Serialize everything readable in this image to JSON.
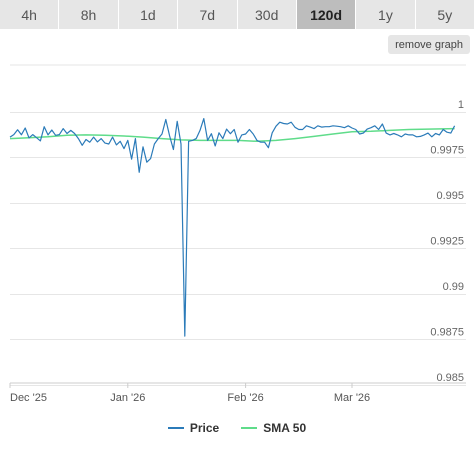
{
  "tabs": [
    {
      "label": "4h",
      "active": false
    },
    {
      "label": "8h",
      "active": false
    },
    {
      "label": "1d",
      "active": false
    },
    {
      "label": "7d",
      "active": false
    },
    {
      "label": "30d",
      "active": false
    },
    {
      "label": "120d",
      "active": true
    },
    {
      "label": "1y",
      "active": false
    },
    {
      "label": "5y",
      "active": false
    }
  ],
  "remove_graph_label": "remove graph",
  "colors": {
    "price": "#2b7bb9",
    "sma": "#5fdc8a",
    "grid": "#e6e6e6"
  },
  "chart_data": {
    "type": "line",
    "x_unit": "day index (0 = 1 Dec 2025)",
    "x_ticks": [
      {
        "label": "Dec '25",
        "x": 0
      },
      {
        "label": "Jan '26",
        "x": 31
      },
      {
        "label": "Feb '26",
        "x": 62
      },
      {
        "label": "Mar '26",
        "x": 90
      }
    ],
    "xlim": [
      0,
      120
    ],
    "ylim": [
      0.985,
      1.0
    ],
    "y_ticks": [
      {
        "label": "1",
        "v": 1.0
      },
      {
        "label": "0.9975",
        "v": 0.9975
      },
      {
        "label": "0.995",
        "v": 0.995
      },
      {
        "label": "0.9925",
        "v": 0.9925
      },
      {
        "label": "0.99",
        "v": 0.99
      },
      {
        "label": "0.9875",
        "v": 0.9875
      },
      {
        "label": "0.985",
        "v": 0.985
      }
    ],
    "grid": true,
    "legend_position": "bottom",
    "series": [
      {
        "name": "Price",
        "color": "#2b7bb9",
        "points": [
          [
            0,
            0.99818
          ],
          [
            1,
            0.99832
          ],
          [
            2,
            0.99858
          ],
          [
            3,
            0.99831
          ],
          [
            4,
            0.99868
          ],
          [
            5,
            0.99814
          ],
          [
            6,
            0.99832
          ],
          [
            7,
            0.99815
          ],
          [
            8,
            0.99797
          ],
          [
            9,
            0.99875
          ],
          [
            10,
            0.9983
          ],
          [
            11,
            0.99857
          ],
          [
            12,
            0.99828
          ],
          [
            13,
            0.99832
          ],
          [
            14,
            0.99865
          ],
          [
            15,
            0.99838
          ],
          [
            16,
            0.99855
          ],
          [
            17,
            0.99838
          ],
          [
            18,
            0.9981
          ],
          [
            19,
            0.99773
          ],
          [
            20,
            0.99805
          ],
          [
            21,
            0.9979
          ],
          [
            22,
            0.99818
          ],
          [
            23,
            0.99792
          ],
          [
            24,
            0.9981
          ],
          [
            25,
            0.99785
          ],
          [
            26,
            0.9978
          ],
          [
            27,
            0.99818
          ],
          [
            28,
            0.99775
          ],
          [
            29,
            0.99795
          ],
          [
            30,
            0.99755
          ],
          [
            31,
            0.998
          ],
          [
            32,
            0.99697
          ],
          [
            33,
            0.9981
          ],
          [
            34,
            0.99625
          ],
          [
            35,
            0.99765
          ],
          [
            36,
            0.9968
          ],
          [
            37,
            0.997
          ],
          [
            38,
            0.9978
          ],
          [
            39,
            0.9981
          ],
          [
            40,
            0.99835
          ],
          [
            41,
            0.99915
          ],
          [
            42,
            0.99825
          ],
          [
            43,
            0.9975
          ],
          [
            44,
            0.99905
          ],
          [
            45,
            0.9978
          ],
          [
            46,
            0.98725
          ],
          [
            47,
            0.99795
          ],
          [
            48,
            0.998
          ],
          [
            49,
            0.9981
          ],
          [
            50,
            0.99855
          ],
          [
            51,
            0.9992
          ],
          [
            52,
            0.998
          ],
          [
            53,
            0.99837
          ],
          [
            54,
            0.9977
          ],
          [
            55,
            0.99842
          ],
          [
            56,
            0.9981
          ],
          [
            57,
            0.99862
          ],
          [
            58,
            0.99837
          ],
          [
            59,
            0.9986
          ],
          [
            60,
            0.9979
          ],
          [
            61,
            0.9983
          ],
          [
            62,
            0.99835
          ],
          [
            63,
            0.9986
          ],
          [
            64,
            0.99835
          ],
          [
            65,
            0.998
          ],
          [
            66,
            0.9979
          ],
          [
            67,
            0.9979
          ],
          [
            68,
            0.9976
          ],
          [
            69,
            0.99842
          ],
          [
            70,
            0.99878
          ],
          [
            71,
            0.999
          ],
          [
            72,
            0.99893
          ],
          [
            73,
            0.9989
          ],
          [
            74,
            0.999
          ],
          [
            75,
            0.99872
          ],
          [
            76,
            0.9986
          ],
          [
            77,
            0.9986
          ],
          [
            78,
            0.9988
          ],
          [
            79,
            0.99873
          ],
          [
            80,
            0.99865
          ],
          [
            81,
            0.9988
          ],
          [
            82,
            0.99873
          ],
          [
            83,
            0.99875
          ],
          [
            84,
            0.99875
          ],
          [
            85,
            0.9988
          ],
          [
            86,
            0.99878
          ],
          [
            87,
            0.99875
          ],
          [
            88,
            0.9987
          ],
          [
            89,
            0.9988
          ],
          [
            90,
            0.99868
          ],
          [
            91,
            0.9986
          ],
          [
            92,
            0.99835
          ],
          [
            93,
            0.9984
          ],
          [
            94,
            0.99862
          ],
          [
            95,
            0.9987
          ],
          [
            96,
            0.9988
          ],
          [
            97,
            0.9986
          ],
          [
            98,
            0.9989
          ],
          [
            99,
            0.9984
          ],
          [
            100,
            0.9983
          ],
          [
            101,
            0.99838
          ],
          [
            102,
            0.9983
          ],
          [
            103,
            0.9982
          ],
          [
            104,
            0.99835
          ],
          [
            105,
            0.9983
          ],
          [
            106,
            0.9983
          ],
          [
            107,
            0.9982
          ],
          [
            108,
            0.99822
          ],
          [
            109,
            0.9983
          ],
          [
            110,
            0.9984
          ],
          [
            111,
            0.9982
          ],
          [
            112,
            0.99838
          ],
          [
            113,
            0.9983
          ],
          [
            114,
            0.9986
          ],
          [
            115,
            0.99845
          ],
          [
            116,
            0.9984
          ],
          [
            117,
            0.9988
          ]
        ]
      },
      {
        "name": "SMA 50",
        "color": "#5fdc8a",
        "points": [
          [
            0,
            0.9981
          ],
          [
            5,
            0.99815
          ],
          [
            10,
            0.9982
          ],
          [
            15,
            0.99828
          ],
          [
            20,
            0.9983
          ],
          [
            25,
            0.99828
          ],
          [
            30,
            0.99824
          ],
          [
            35,
            0.99818
          ],
          [
            40,
            0.9981
          ],
          [
            45,
            0.99803
          ],
          [
            50,
            0.998
          ],
          [
            55,
            0.998
          ],
          [
            60,
            0.998
          ],
          [
            65,
            0.99795
          ],
          [
            70,
            0.998
          ],
          [
            75,
            0.9981
          ],
          [
            80,
            0.99822
          ],
          [
            85,
            0.99835
          ],
          [
            90,
            0.99848
          ],
          [
            95,
            0.9985
          ],
          [
            100,
            0.99855
          ],
          [
            105,
            0.9986
          ],
          [
            110,
            0.99862
          ],
          [
            117,
            0.99865
          ]
        ]
      }
    ]
  }
}
